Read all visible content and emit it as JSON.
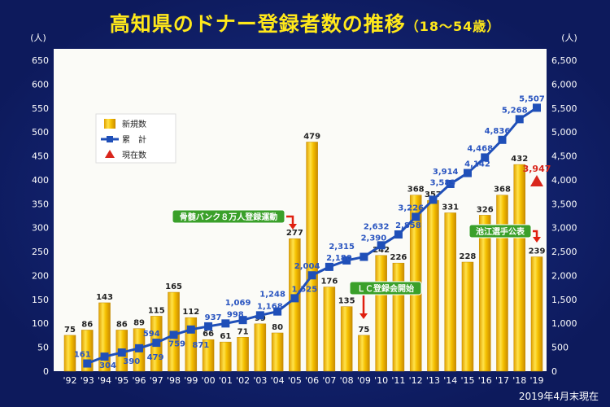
{
  "chart_data": {
    "type": "bar+line",
    "title": "高知県のドナー登録者数の推移",
    "title_suffix": "（18〜54歳）",
    "left_unit": "(人)",
    "right_unit": "(人)",
    "left_ylim": [
      0,
      650
    ],
    "left_ticks": [
      0,
      50,
      100,
      150,
      200,
      250,
      300,
      350,
      400,
      450,
      500,
      550,
      600,
      650
    ],
    "right_ylim": [
      0,
      6500
    ],
    "right_ticks": [
      "0",
      "500",
      "1,000",
      "1,500",
      "2,000",
      "2,500",
      "3,000",
      "3,500",
      "4,000",
      "4,500",
      "5,000",
      "5,500",
      "6,000",
      "6,500"
    ],
    "categories": [
      "'92",
      "'93",
      "'94",
      "'95",
      "'96",
      "'97",
      "'98",
      "'99",
      "'00",
      "'01",
      "'02",
      "'03",
      "'04",
      "'05",
      "'06",
      "'07",
      "'08",
      "'09",
      "'10",
      "'11",
      "'12",
      "'13",
      "'14",
      "'15",
      "'16",
      "'17",
      "'18",
      "'19"
    ],
    "series": [
      {
        "name": "新規数",
        "type": "bar",
        "color": "#f5c000",
        "values": [
          75,
          86,
          143,
          86,
          89,
          115,
          165,
          112,
          66,
          61,
          71,
          99,
          80,
          277,
          479,
          176,
          135,
          75,
          242,
          226,
          368,
          357,
          331,
          228,
          326,
          368,
          432,
          239
        ]
      },
      {
        "name": "累　計",
        "type": "line",
        "color": "#1f4fb8",
        "values": [
          null,
          161,
          304,
          390,
          479,
          594,
          759,
          871,
          937,
          998,
          1069,
          1168,
          1248,
          1525,
          2004,
          2180,
          2315,
          2390,
          2632,
          2858,
          3226,
          3583,
          3914,
          4142,
          4468,
          4836,
          5268,
          5507
        ],
        "labels": [
          null,
          "161",
          "304",
          "390",
          "479",
          "594",
          "759",
          "871",
          "937",
          "998",
          "1,069",
          "1,168",
          "1,248",
          "1,525",
          "2,004",
          "2,180",
          "2,315",
          "2,390",
          "2,632",
          "2,858",
          "3,226",
          "3,583",
          "3,914",
          "4,142",
          "4,468",
          "4,836",
          "5,268",
          "5,507"
        ]
      },
      {
        "name": "現在数",
        "type": "marker",
        "color": "#d9261c",
        "category": "'19",
        "value": 3947,
        "label": "3,947"
      }
    ],
    "annotations": [
      {
        "text": "骨髄バンク８万人登録運動",
        "category": "'05"
      },
      {
        "text": "ＬＣ登録会開始",
        "category": "'09"
      },
      {
        "text": "池江選手公表",
        "category": "'19"
      }
    ],
    "legend_position": "upper-left",
    "footnote": "2019年4月末現在"
  }
}
